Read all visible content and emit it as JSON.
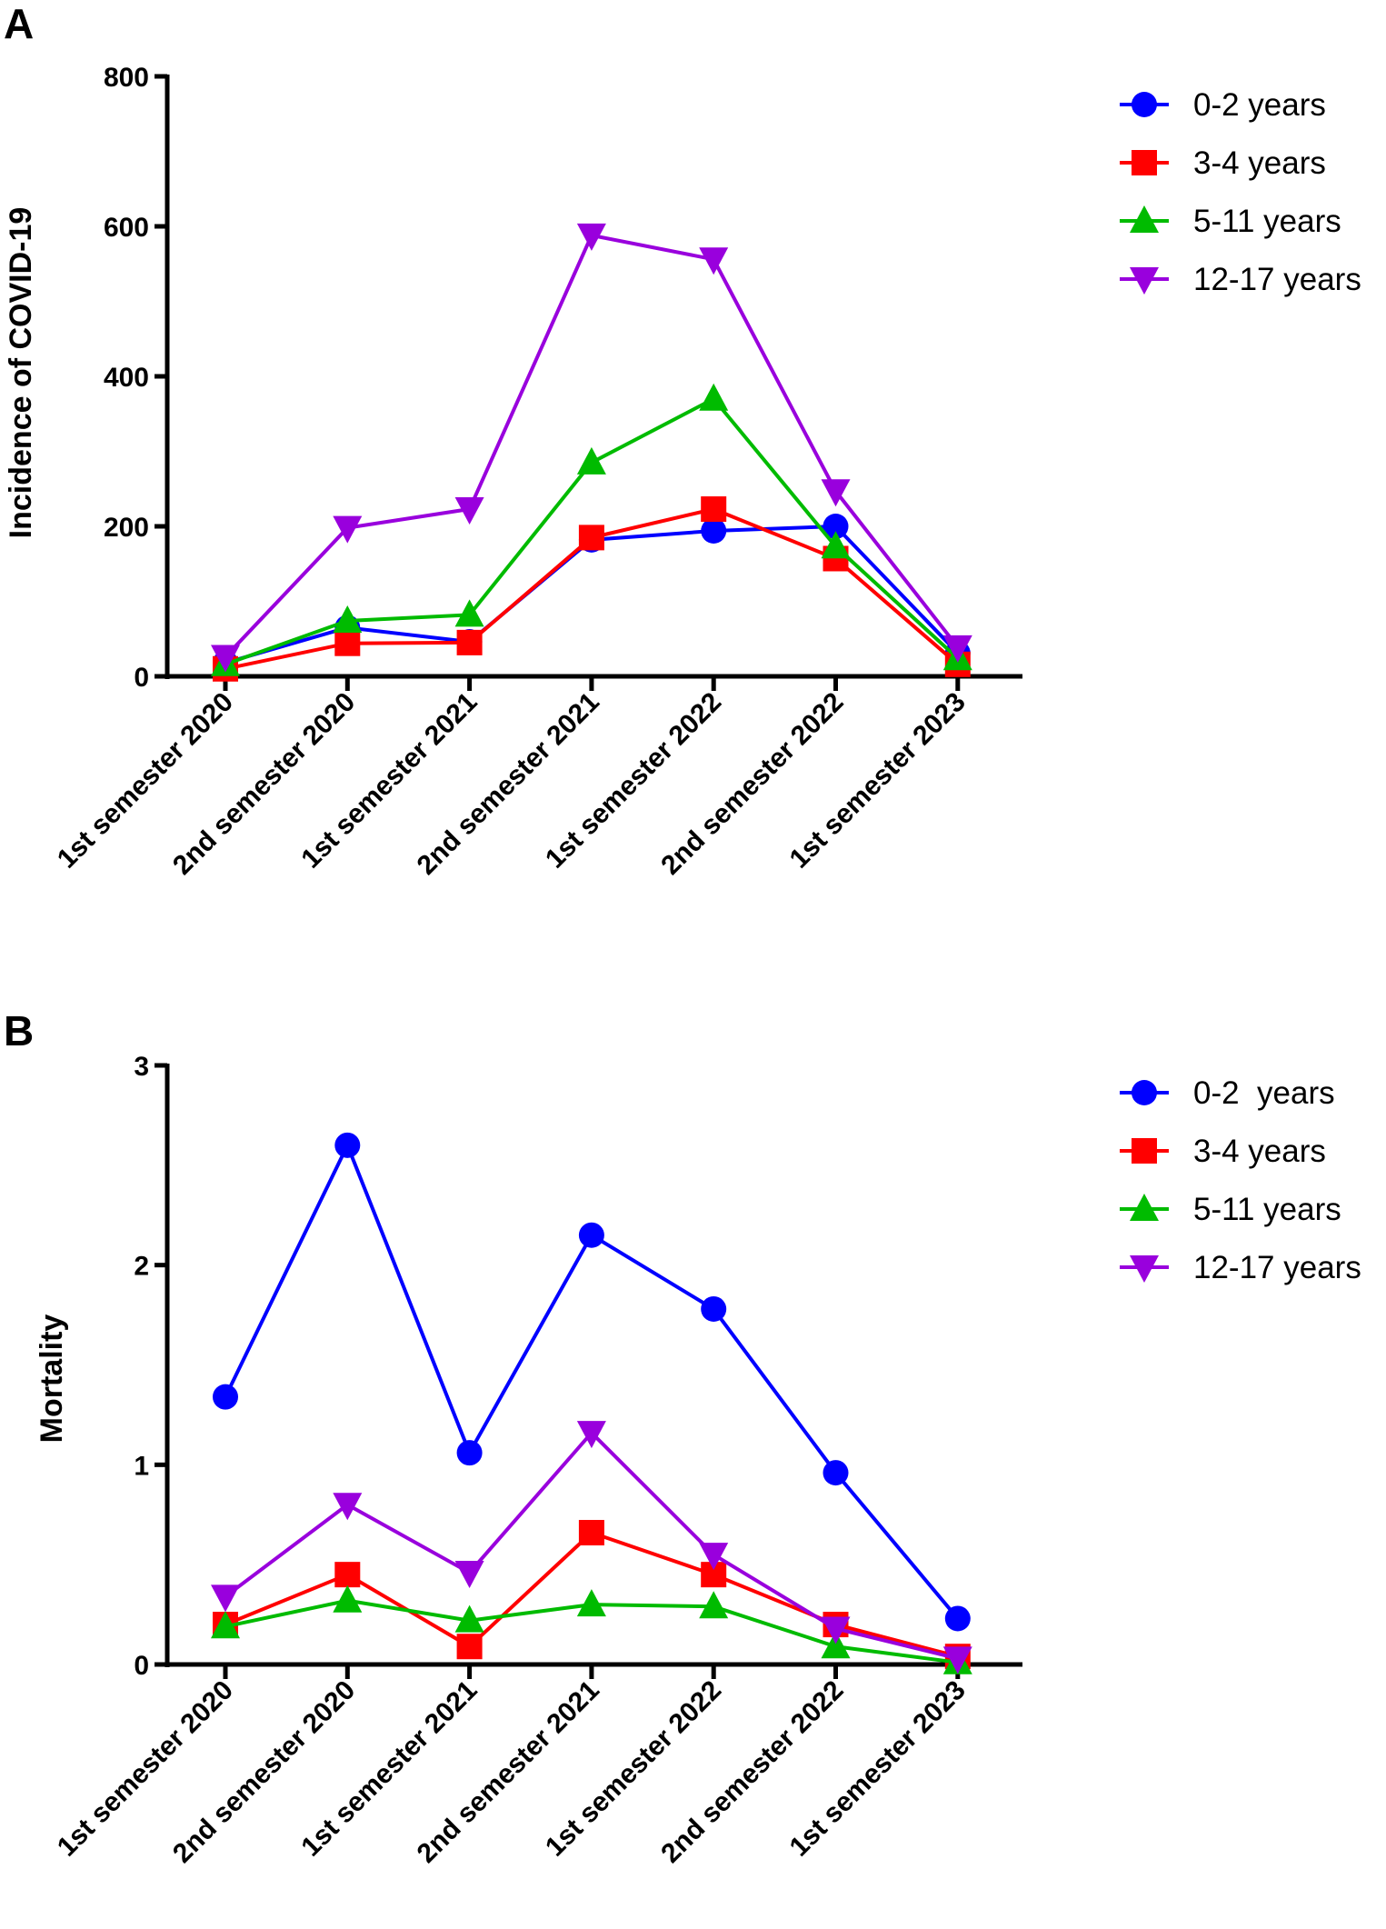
{
  "chart_data": [
    {
      "panel_label": "A",
      "type": "line",
      "xlabel": "",
      "ylabel": "Incidence of COVID-19",
      "ylim": [
        0,
        800
      ],
      "yticks": [
        0,
        200,
        400,
        600,
        800
      ],
      "grid": false,
      "legend_position": "top-right",
      "categories": [
        "1st semester 2020",
        "2nd semester 2020",
        "1st semester 2021",
        "2nd semester 2021",
        "1st semester 2022",
        "2nd semester 2022",
        "1st semester 2023"
      ],
      "series": [
        {
          "name": "0-2 years",
          "color": "#0000ff",
          "marker": "circle",
          "values": [
            18,
            65,
            46,
            182,
            194,
            200,
            31
          ]
        },
        {
          "name": "3-4 years",
          "color": "#ff0000",
          "marker": "square",
          "values": [
            10,
            44,
            45,
            185,
            223,
            157,
            16
          ]
        },
        {
          "name": "5-11 years",
          "color": "#00bb00",
          "marker": "triangle-up",
          "values": [
            16,
            74,
            82,
            285,
            370,
            173,
            24
          ]
        },
        {
          "name": "12-17 years",
          "color": "#9900dd",
          "marker": "triangle-down",
          "values": [
            26,
            198,
            223,
            588,
            556,
            247,
            39
          ]
        }
      ]
    },
    {
      "panel_label": "B",
      "type": "line",
      "xlabel": "",
      "ylabel": "Mortality",
      "ylim": [
        0,
        3
      ],
      "yticks": [
        0,
        1,
        2,
        3
      ],
      "grid": false,
      "legend_position": "top-right",
      "categories": [
        "1st semester 2020",
        "2nd semester 2020",
        "1st semester 2021",
        "2nd semester 2021",
        "1st semester 2022",
        "2nd semester 2022",
        "1st semester 2023"
      ],
      "series": [
        {
          "name": "0-2  years",
          "color": "#0000ff",
          "marker": "circle",
          "values": [
            1.34,
            2.6,
            1.06,
            2.15,
            1.78,
            0.96,
            0.23
          ]
        },
        {
          "name": "3-4 years",
          "color": "#ff0000",
          "marker": "square",
          "values": [
            0.2,
            0.45,
            0.09,
            0.66,
            0.45,
            0.2,
            0.04
          ]
        },
        {
          "name": "5-11 years",
          "color": "#00bb00",
          "marker": "triangle-up",
          "values": [
            0.19,
            0.32,
            0.22,
            0.3,
            0.29,
            0.09,
            0.01
          ]
        },
        {
          "name": "12-17 years",
          "color": "#9900dd",
          "marker": "triangle-down",
          "values": [
            0.34,
            0.8,
            0.46,
            1.16,
            0.55,
            0.18,
            0.03
          ]
        }
      ]
    }
  ]
}
